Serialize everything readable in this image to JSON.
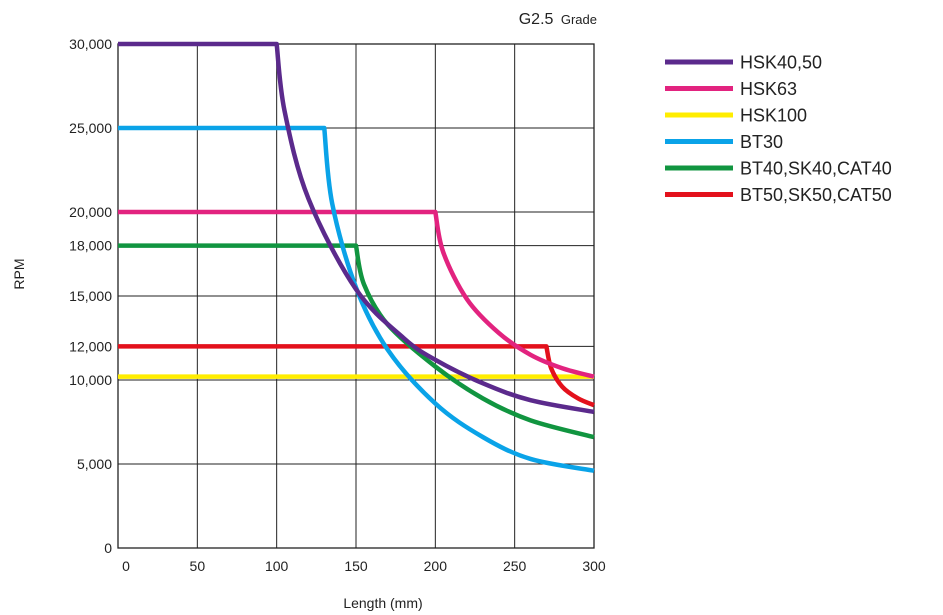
{
  "chart_data": {
    "type": "line",
    "title_main": "G2.5",
    "title_sub": "Grade",
    "xlabel": "Length (mm)",
    "ylabel": "RPM",
    "xlim": [
      0,
      300
    ],
    "ylim": [
      0,
      30000
    ],
    "grid": true,
    "legend": "right",
    "x_ticks": [
      {
        "v": 0,
        "label": "0"
      },
      {
        "v": 50,
        "label": "50"
      },
      {
        "v": 100,
        "label": "100"
      },
      {
        "v": 150,
        "label": "150"
      },
      {
        "v": 200,
        "label": "200"
      },
      {
        "v": 250,
        "label": "250"
      },
      {
        "v": 300,
        "label": "300"
      }
    ],
    "y_ticks": [
      {
        "v": 0,
        "label": "0"
      },
      {
        "v": 5000,
        "label": "5,000"
      },
      {
        "v": 10000,
        "label": "10,000"
      },
      {
        "v": 12000,
        "label": "12,000"
      },
      {
        "v": 15000,
        "label": "15,000"
      },
      {
        "v": 18000,
        "label": "18,000"
      },
      {
        "v": 20000,
        "label": "20,000"
      },
      {
        "v": 25000,
        "label": "25,000"
      },
      {
        "v": 30000,
        "label": "30,000"
      }
    ],
    "series": [
      {
        "name": "HSK40,50",
        "color": "#5b2a8c",
        "points": [
          [
            0,
            30000
          ],
          [
            100,
            30000
          ],
          [
            105,
            26000
          ],
          [
            120,
            20800
          ],
          [
            150,
            15400
          ],
          [
            180,
            12500
          ],
          [
            200,
            11200
          ],
          [
            230,
            9800
          ],
          [
            260,
            8800
          ],
          [
            300,
            8100
          ]
        ]
      },
      {
        "name": "HSK63",
        "color": "#e2237f",
        "points": [
          [
            0,
            20000
          ],
          [
            200,
            20000
          ],
          [
            205,
            17600
          ],
          [
            220,
            14800
          ],
          [
            240,
            12800
          ],
          [
            260,
            11500
          ],
          [
            280,
            10700
          ],
          [
            300,
            10200
          ]
        ]
      },
      {
        "name": "HSK100",
        "color": "#ffed00",
        "points": [
          [
            0,
            10200
          ],
          [
            300,
            10200
          ]
        ]
      },
      {
        "name": "BT30",
        "color": "#0aa3e8",
        "points": [
          [
            0,
            25000
          ],
          [
            130,
            25000
          ],
          [
            135,
            20500
          ],
          [
            150,
            15500
          ],
          [
            170,
            11800
          ],
          [
            200,
            8600
          ],
          [
            230,
            6600
          ],
          [
            260,
            5300
          ],
          [
            300,
            4600
          ]
        ]
      },
      {
        "name": "BT40,SK40,CAT40",
        "color": "#119540",
        "points": [
          [
            0,
            18000
          ],
          [
            150,
            18000
          ],
          [
            155,
            15700
          ],
          [
            170,
            13300
          ],
          [
            200,
            10800
          ],
          [
            230,
            8900
          ],
          [
            260,
            7600
          ],
          [
            300,
            6600
          ]
        ]
      },
      {
        "name": "BT50,SK50,CAT50",
        "color": "#e3111c",
        "points": [
          [
            0,
            12000
          ],
          [
            270,
            12000
          ],
          [
            273,
            10700
          ],
          [
            280,
            9600
          ],
          [
            290,
            8900
          ],
          [
            300,
            8500
          ]
        ]
      }
    ]
  }
}
